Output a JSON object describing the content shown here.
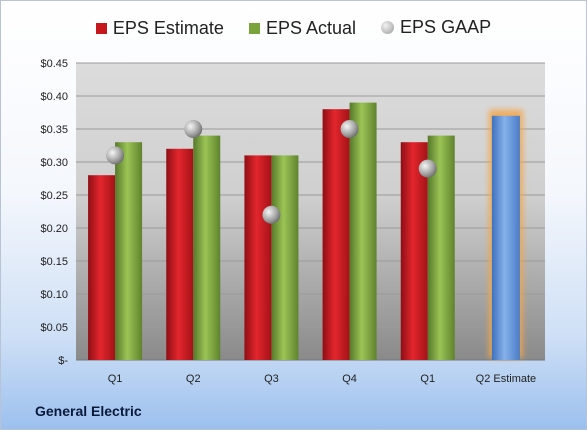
{
  "chart_data": {
    "type": "bar",
    "categories": [
      "Q1",
      "Q2",
      "Q3",
      "Q4",
      "Q1",
      "Q2 Estimate"
    ],
    "series": [
      {
        "name": "EPS Estimate",
        "values": [
          0.28,
          0.32,
          0.31,
          0.38,
          0.33,
          null
        ],
        "color": "#c8161d"
      },
      {
        "name": "EPS Actual",
        "values": [
          0.33,
          0.34,
          0.31,
          0.39,
          0.34,
          null
        ],
        "color": "#7aa33b"
      },
      {
        "name": "EPS GAAP",
        "values": [
          0.31,
          0.35,
          0.22,
          0.35,
          0.29,
          null
        ],
        "marker": "circle",
        "color": "#a6a6a6"
      }
    ],
    "estimate": {
      "category": "Q2 Estimate",
      "value": 0.37,
      "color": "#5b8fd6",
      "glow": "#f4a64a"
    },
    "ylim": [
      0,
      0.45
    ],
    "yticks": [
      0,
      0.05,
      0.1,
      0.15,
      0.2,
      0.25,
      0.3,
      0.35,
      0.4,
      0.45
    ],
    "ytick_labels": [
      "$-",
      "$0.05",
      "$0.10",
      "$0.15",
      "$0.20",
      "$0.25",
      "$0.30",
      "$0.35",
      "$0.40",
      "$0.45"
    ],
    "grid": true,
    "legend_position": "top"
  },
  "company": "General Electric"
}
